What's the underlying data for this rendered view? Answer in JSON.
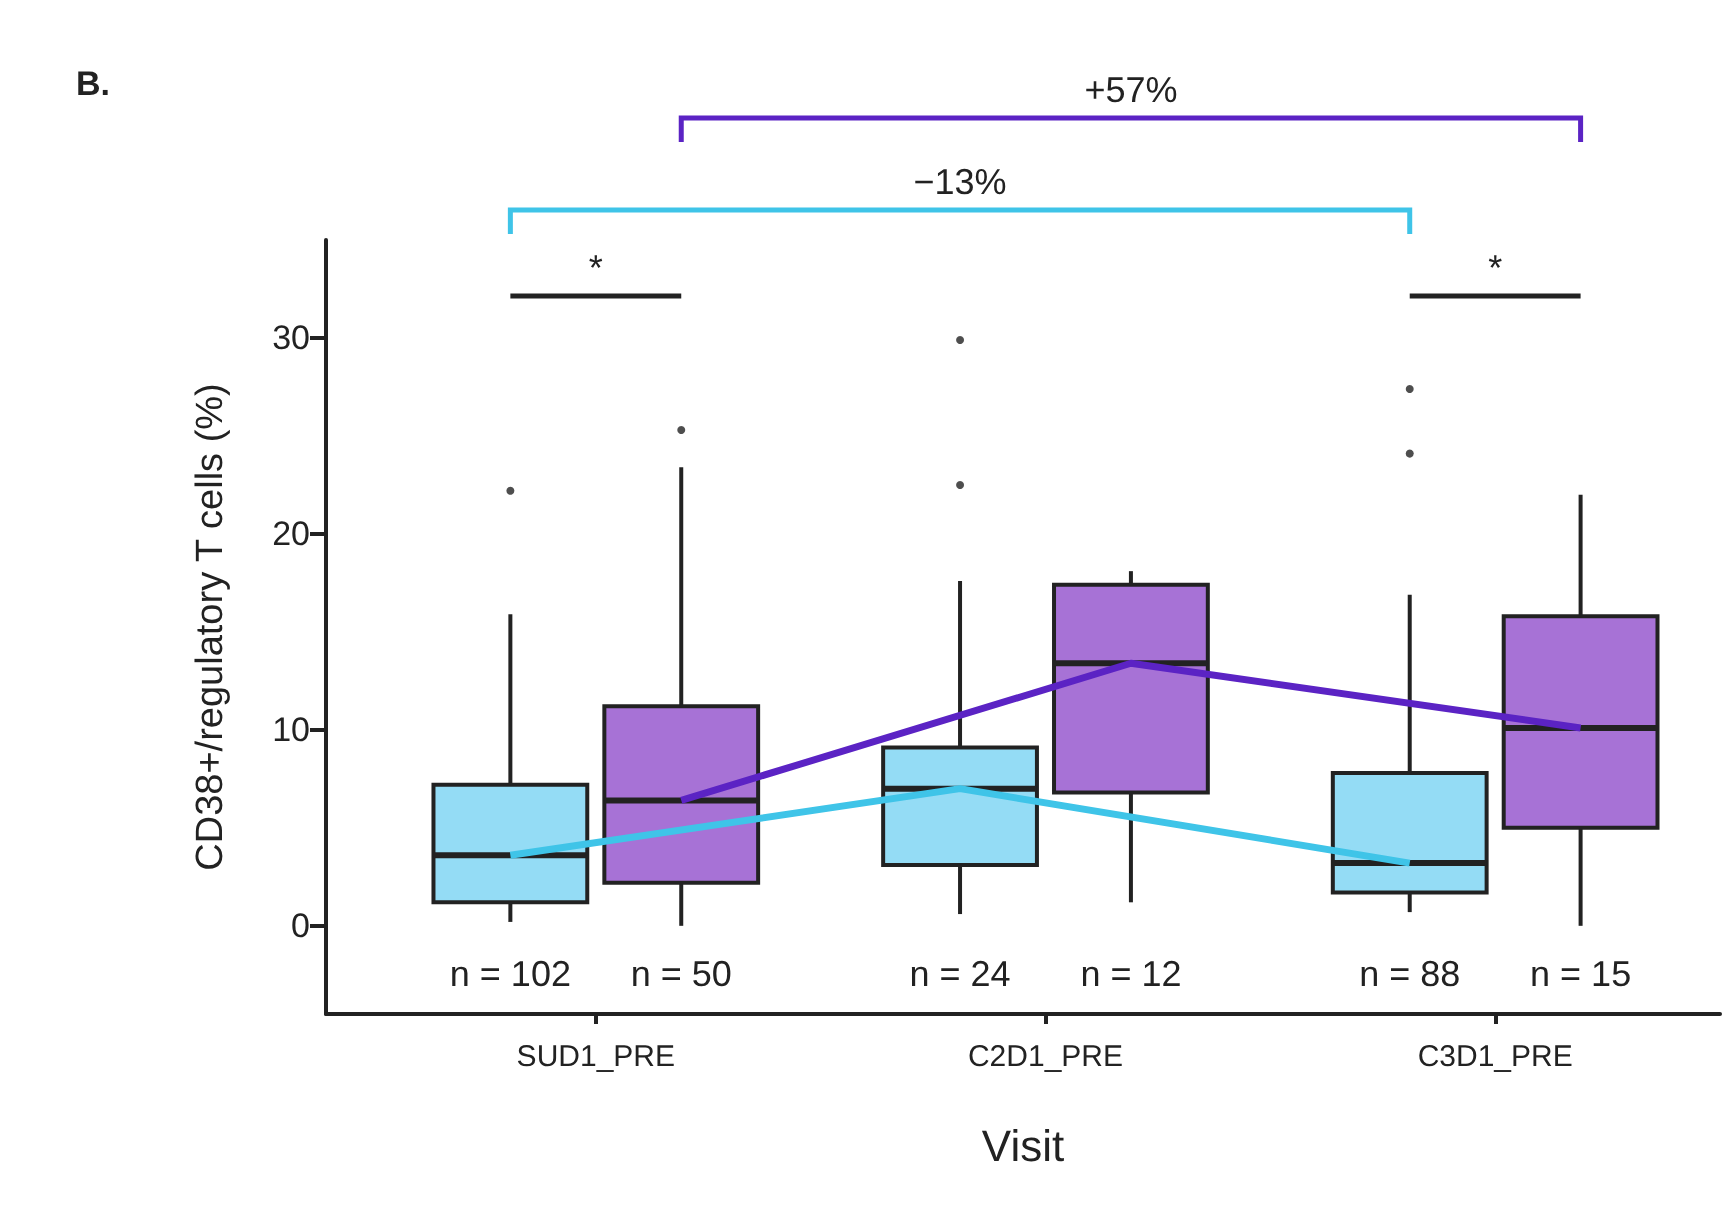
{
  "chart_data": {
    "type": "box",
    "xlabel": "Visit",
    "ylabel": "CD38+/regulatory T cells (%)",
    "categories": [
      "SUD1_PRE",
      "C2D1_PRE",
      "C3D1_PRE"
    ],
    "ylim": [
      -4.5,
      35
    ],
    "yticks": [
      0,
      10,
      20,
      30
    ],
    "grid": false,
    "series": [
      {
        "color": "#94dcf5",
        "value_labels": [
          "n = 102",
          "n = 24",
          "n = 88"
        ],
        "boxes": [
          {
            "low": 0.2,
            "q1": 1.2,
            "median": 3.6,
            "q3": 7.2,
            "high": 15.9,
            "outliers": [
              22.2
            ]
          },
          {
            "low": 0.6,
            "q1": 3.1,
            "median": 7.0,
            "q3": 9.1,
            "high": 17.6,
            "outliers": [
              29.9,
              22.5
            ]
          },
          {
            "low": 0.7,
            "q1": 1.7,
            "median": 3.2,
            "q3": 7.8,
            "high": 16.9,
            "outliers": [
              27.4,
              24.1
            ]
          }
        ]
      },
      {
        "color": "#a772d6",
        "value_labels": [
          "n = 50",
          "n = 12",
          "n = 15"
        ],
        "boxes": [
          {
            "low": 0,
            "q1": 2.2,
            "median": 6.4,
            "q3": 11.2,
            "high": 23.4,
            "outliers": [
              25.3
            ]
          },
          {
            "low": 1.2,
            "q1": 6.8,
            "median": 13.4,
            "q3": 17.4,
            "high": 18.1
          },
          {
            "low": 0,
            "q1": 5.0,
            "median": 10.1,
            "q3": 15.8,
            "high": 22.0
          }
        ]
      },
      {
        "type": "line",
        "color": "#3fc4e8",
        "values": [
          3.6,
          7.0,
          3.2
        ]
      },
      {
        "type": "line",
        "color": "#5b23c4",
        "values": [
          6.4,
          13.4,
          10.1
        ]
      }
    ],
    "annotations": [
      "B.",
      "+57%",
      "−13%",
      "*",
      "*"
    ]
  }
}
